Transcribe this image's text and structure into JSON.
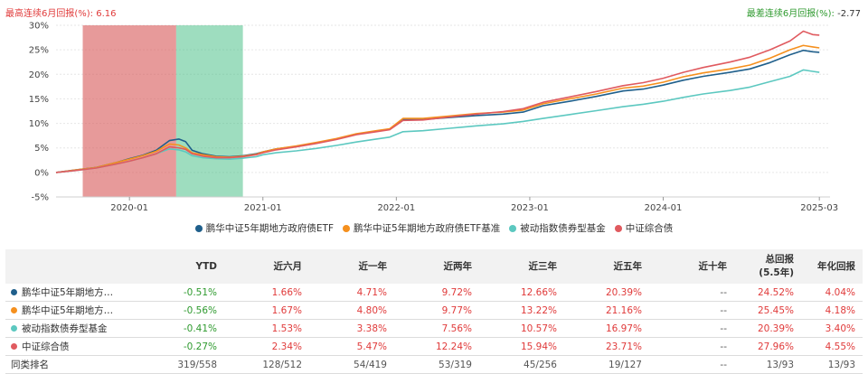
{
  "header": {
    "best_label": "最高连续6月回报(%):",
    "best_value": "6.16",
    "worst_label": "最差连续6月回报(%):",
    "worst_value": "-2.77"
  },
  "colors": {
    "series": [
      "#1f5f8b",
      "#f5901e",
      "#5cc8c0",
      "#e05a5f"
    ],
    "best_band": "#d85c5c",
    "worst_band": "#3dbb80",
    "positive": "#e03a3a",
    "negative": "#2f9a2f"
  },
  "chart_data": {
    "type": "line",
    "ylabel": "",
    "xlabel": "",
    "ylim": [
      -5,
      30
    ],
    "yticks": [
      "30%",
      "25%",
      "20%",
      "15%",
      "10%",
      "5%",
      "0%",
      "-5%"
    ],
    "ytick_values": [
      30,
      25,
      20,
      15,
      10,
      5,
      0,
      -5
    ],
    "xlim": [
      2019.45,
      2025.25
    ],
    "xticks": [
      "2020-01",
      "2021-01",
      "2022-01",
      "2023-01",
      "2024-01",
      "2025-03"
    ],
    "xtick_values": [
      2020.0,
      2021.0,
      2022.0,
      2023.0,
      2024.0,
      2025.17
    ],
    "best_period": {
      "start": 2019.65,
      "end": 2020.35
    },
    "worst_period": {
      "start": 2020.35,
      "end": 2020.85
    },
    "series": [
      {
        "name": "鹏华中证5年期地方政府债ETF",
        "points": [
          [
            2019.45,
            0
          ],
          [
            2019.6,
            0.5
          ],
          [
            2019.75,
            1
          ],
          [
            2019.9,
            2
          ],
          [
            2020.0,
            2.8
          ],
          [
            2020.1,
            3.5
          ],
          [
            2020.2,
            4.5
          ],
          [
            2020.3,
            6.5
          ],
          [
            2020.37,
            6.8
          ],
          [
            2020.42,
            6.3
          ],
          [
            2020.47,
            4.5
          ],
          [
            2020.55,
            3.8
          ],
          [
            2020.65,
            3.3
          ],
          [
            2020.75,
            3.2
          ],
          [
            2020.85,
            3.4
          ],
          [
            2020.95,
            3.8
          ],
          [
            2021.0,
            4.2
          ],
          [
            2021.1,
            4.8
          ],
          [
            2021.25,
            5.3
          ],
          [
            2021.4,
            6
          ],
          [
            2021.55,
            6.8
          ],
          [
            2021.7,
            7.8
          ],
          [
            2021.85,
            8.4
          ],
          [
            2021.95,
            8.8
          ],
          [
            2022.05,
            10.8
          ],
          [
            2022.2,
            10.8
          ],
          [
            2022.4,
            11.2
          ],
          [
            2022.6,
            11.6
          ],
          [
            2022.8,
            11.9
          ],
          [
            2022.95,
            12.3
          ],
          [
            2023.1,
            13.6
          ],
          [
            2023.3,
            14.5
          ],
          [
            2023.5,
            15.5
          ],
          [
            2023.7,
            16.6
          ],
          [
            2023.85,
            17
          ],
          [
            2024.0,
            17.8
          ],
          [
            2024.15,
            18.8
          ],
          [
            2024.3,
            19.6
          ],
          [
            2024.5,
            20.4
          ],
          [
            2024.65,
            21.1
          ],
          [
            2024.8,
            22.4
          ],
          [
            2024.95,
            24
          ],
          [
            2025.05,
            24.9
          ],
          [
            2025.12,
            24.6
          ],
          [
            2025.17,
            24.5
          ]
        ]
      },
      {
        "name": "鹏华中证5年期地方政府债ETF基准",
        "points": [
          [
            2019.45,
            0
          ],
          [
            2019.6,
            0.5
          ],
          [
            2019.75,
            1
          ],
          [
            2019.9,
            2
          ],
          [
            2020.0,
            2.7
          ],
          [
            2020.1,
            3.4
          ],
          [
            2020.2,
            4.3
          ],
          [
            2020.3,
            5.8
          ],
          [
            2020.37,
            5.6
          ],
          [
            2020.42,
            5
          ],
          [
            2020.47,
            4
          ],
          [
            2020.55,
            3.6
          ],
          [
            2020.65,
            3.2
          ],
          [
            2020.75,
            3.1
          ],
          [
            2020.85,
            3.3
          ],
          [
            2020.95,
            3.7
          ],
          [
            2021.0,
            4.2
          ],
          [
            2021.1,
            4.8
          ],
          [
            2021.25,
            5.4
          ],
          [
            2021.4,
            6.1
          ],
          [
            2021.55,
            6.9
          ],
          [
            2021.7,
            7.9
          ],
          [
            2021.85,
            8.5
          ],
          [
            2021.95,
            8.9
          ],
          [
            2022.05,
            11
          ],
          [
            2022.2,
            11
          ],
          [
            2022.4,
            11.5
          ],
          [
            2022.6,
            12
          ],
          [
            2022.8,
            12.3
          ],
          [
            2022.95,
            12.7
          ],
          [
            2023.1,
            14
          ],
          [
            2023.3,
            15
          ],
          [
            2023.5,
            16
          ],
          [
            2023.7,
            17.2
          ],
          [
            2023.85,
            17.6
          ],
          [
            2024.0,
            18.4
          ],
          [
            2024.15,
            19.5
          ],
          [
            2024.3,
            20.3
          ],
          [
            2024.5,
            21.1
          ],
          [
            2024.65,
            21.9
          ],
          [
            2024.8,
            23.3
          ],
          [
            2024.95,
            25
          ],
          [
            2025.05,
            25.9
          ],
          [
            2025.12,
            25.6
          ],
          [
            2025.17,
            25.4
          ]
        ]
      },
      {
        "name": "被动指数债券型基金",
        "points": [
          [
            2019.45,
            0
          ],
          [
            2019.6,
            0.4
          ],
          [
            2019.75,
            0.9
          ],
          [
            2019.9,
            1.7
          ],
          [
            2020.0,
            2.3
          ],
          [
            2020.1,
            3
          ],
          [
            2020.2,
            3.8
          ],
          [
            2020.3,
            4.8
          ],
          [
            2020.37,
            4.6
          ],
          [
            2020.42,
            4.2
          ],
          [
            2020.47,
            3.4
          ],
          [
            2020.55,
            3
          ],
          [
            2020.65,
            2.8
          ],
          [
            2020.75,
            2.7
          ],
          [
            2020.85,
            2.9
          ],
          [
            2020.95,
            3.2
          ],
          [
            2021.0,
            3.6
          ],
          [
            2021.1,
            4
          ],
          [
            2021.25,
            4.4
          ],
          [
            2021.4,
            4.9
          ],
          [
            2021.55,
            5.5
          ],
          [
            2021.7,
            6.2
          ],
          [
            2021.85,
            6.8
          ],
          [
            2021.95,
            7.2
          ],
          [
            2022.05,
            8.3
          ],
          [
            2022.2,
            8.5
          ],
          [
            2022.4,
            9
          ],
          [
            2022.6,
            9.5
          ],
          [
            2022.8,
            9.9
          ],
          [
            2022.95,
            10.4
          ],
          [
            2023.1,
            11
          ],
          [
            2023.3,
            11.8
          ],
          [
            2023.5,
            12.6
          ],
          [
            2023.7,
            13.4
          ],
          [
            2023.85,
            13.9
          ],
          [
            2024.0,
            14.5
          ],
          [
            2024.15,
            15.3
          ],
          [
            2024.3,
            16
          ],
          [
            2024.5,
            16.7
          ],
          [
            2024.65,
            17.4
          ],
          [
            2024.8,
            18.5
          ],
          [
            2024.95,
            19.6
          ],
          [
            2025.05,
            20.9
          ],
          [
            2025.12,
            20.6
          ],
          [
            2025.17,
            20.4
          ]
        ]
      },
      {
        "name": "中证综合债",
        "points": [
          [
            2019.45,
            0
          ],
          [
            2019.6,
            0.4
          ],
          [
            2019.75,
            0.9
          ],
          [
            2019.9,
            1.7
          ],
          [
            2020.0,
            2.3
          ],
          [
            2020.1,
            3
          ],
          [
            2020.2,
            3.8
          ],
          [
            2020.3,
            5.2
          ],
          [
            2020.37,
            5
          ],
          [
            2020.42,
            4.7
          ],
          [
            2020.47,
            3.8
          ],
          [
            2020.55,
            3.3
          ],
          [
            2020.65,
            3
          ],
          [
            2020.75,
            3
          ],
          [
            2020.85,
            3.2
          ],
          [
            2020.95,
            3.6
          ],
          [
            2021.0,
            4
          ],
          [
            2021.1,
            4.6
          ],
          [
            2021.25,
            5.2
          ],
          [
            2021.4,
            5.9
          ],
          [
            2021.55,
            6.7
          ],
          [
            2021.7,
            7.7
          ],
          [
            2021.85,
            8.3
          ],
          [
            2021.95,
            8.7
          ],
          [
            2022.05,
            10.6
          ],
          [
            2022.2,
            10.7
          ],
          [
            2022.4,
            11.3
          ],
          [
            2022.6,
            11.9
          ],
          [
            2022.8,
            12.4
          ],
          [
            2022.95,
            13
          ],
          [
            2023.1,
            14.3
          ],
          [
            2023.3,
            15.4
          ],
          [
            2023.5,
            16.5
          ],
          [
            2023.7,
            17.7
          ],
          [
            2023.85,
            18.3
          ],
          [
            2024.0,
            19.2
          ],
          [
            2024.15,
            20.4
          ],
          [
            2024.3,
            21.4
          ],
          [
            2024.5,
            22.5
          ],
          [
            2024.65,
            23.5
          ],
          [
            2024.8,
            25
          ],
          [
            2024.95,
            26.8
          ],
          [
            2025.05,
            28.8
          ],
          [
            2025.12,
            28.1
          ],
          [
            2025.17,
            28
          ]
        ]
      }
    ]
  },
  "table": {
    "headers": [
      "",
      "YTD",
      "近六月",
      "近一年",
      "近两年",
      "近三年",
      "近五年",
      "近十年",
      "总回报",
      "年化回报"
    ],
    "total_sub": "(5.5年)",
    "rows": [
      {
        "name": "鹏华中证5年期地方…",
        "values": [
          "-0.51%",
          "1.66%",
          "4.71%",
          "9.72%",
          "12.66%",
          "20.39%",
          "--",
          "24.52%",
          "4.04%"
        ],
        "signs": [
          "neg",
          "pos",
          "pos",
          "pos",
          "pos",
          "pos",
          "neu",
          "pos",
          "pos"
        ]
      },
      {
        "name": "鹏华中证5年期地方…",
        "values": [
          "-0.56%",
          "1.67%",
          "4.80%",
          "9.77%",
          "13.22%",
          "21.16%",
          "--",
          "25.45%",
          "4.18%"
        ],
        "signs": [
          "neg",
          "pos",
          "pos",
          "pos",
          "pos",
          "pos",
          "neu",
          "pos",
          "pos"
        ]
      },
      {
        "name": "被动指数债券型基金",
        "values": [
          "-0.41%",
          "1.53%",
          "3.38%",
          "7.56%",
          "10.57%",
          "16.97%",
          "--",
          "20.39%",
          "3.40%"
        ],
        "signs": [
          "neg",
          "pos",
          "pos",
          "pos",
          "pos",
          "pos",
          "neu",
          "pos",
          "pos"
        ]
      },
      {
        "name": "中证综合债",
        "values": [
          "-0.27%",
          "2.34%",
          "5.47%",
          "12.24%",
          "15.94%",
          "23.71%",
          "--",
          "27.96%",
          "4.55%"
        ],
        "signs": [
          "neg",
          "pos",
          "pos",
          "pos",
          "pos",
          "pos",
          "neu",
          "pos",
          "pos"
        ]
      }
    ],
    "rank_label": "同类排名",
    "rank_values": [
      "319/558",
      "128/512",
      "54/419",
      "53/319",
      "45/256",
      "19/127",
      "--",
      "13/93",
      "13/93"
    ]
  }
}
